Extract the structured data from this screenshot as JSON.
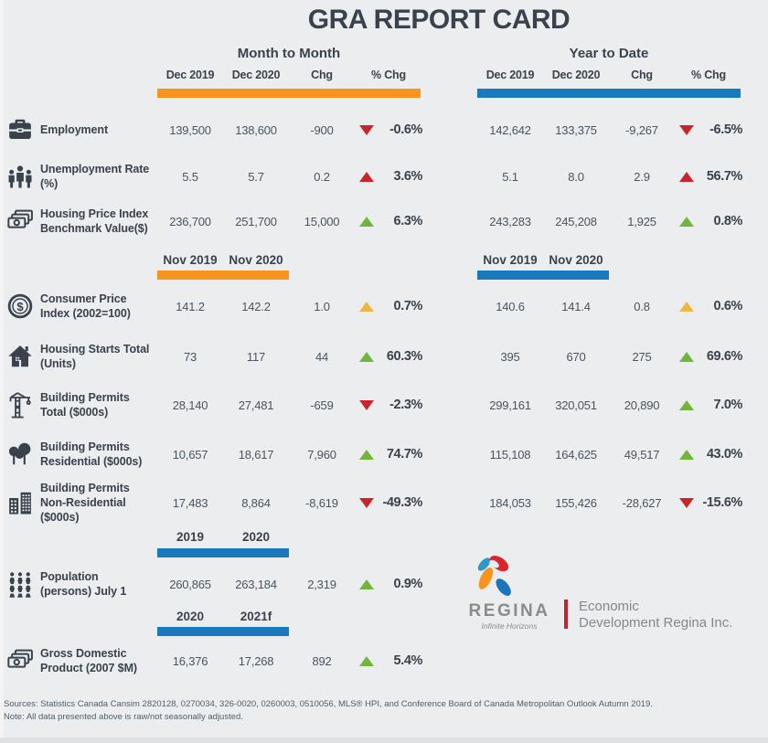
{
  "title": "GRA REPORT CARD",
  "groups": {
    "mtm": {
      "title": "Month to Month",
      "columns": [
        "Dec 2019",
        "Dec 2020",
        "Chg",
        "% Chg"
      ],
      "bar_color": "#F7941D"
    },
    "ytd": {
      "title": "Year to Date",
      "columns": [
        "Dec 2019",
        "Dec 2020",
        "Chg",
        "% Chg"
      ],
      "bar_color": "#1879BD"
    }
  },
  "colors": {
    "orange": "#F7941D",
    "blue": "#1879BD",
    "red": "#C9252C",
    "green": "#71B53A",
    "amber": "#EFB644",
    "dark": "#39424D"
  },
  "rows": [
    {
      "type": "data",
      "icon": "briefcase-icon",
      "label": "Employment",
      "mtm": {
        "v2019": "139,500",
        "v2020": "138,600",
        "chg": "-900",
        "trend": "down-red",
        "pct": "-0.6%"
      },
      "ytd": {
        "v2019": "142,642",
        "v2020": "133,375",
        "chg": "-9,267",
        "trend": "down-red",
        "pct": "-6.5%"
      }
    },
    {
      "type": "data",
      "icon": "people-icon",
      "label": "Unemployment Rate (%)",
      "mtm": {
        "v2019": "5.5",
        "v2020": "5.7",
        "chg": "0.2",
        "trend": "up-red",
        "pct": "3.6%"
      },
      "ytd": {
        "v2019": "5.1",
        "v2020": "8.0",
        "chg": "2.9",
        "trend": "up-red",
        "pct": "56.7%"
      }
    },
    {
      "type": "data",
      "icon": "banknotes-icon",
      "label": "Housing Price Index Benchmark Value($)",
      "mtm": {
        "v2019": "236,700",
        "v2020": "251,700",
        "chg": "15,000",
        "trend": "up-green",
        "pct": "6.3%"
      },
      "ytd": {
        "v2019": "243,283",
        "v2020": "245,208",
        "chg": "1,925",
        "trend": "up-green",
        "pct": "0.8%"
      }
    },
    {
      "type": "subheader",
      "left": {
        "labels": [
          "Nov 2019",
          "Nov 2020"
        ],
        "bar_color_key": "orange"
      },
      "right": {
        "labels": [
          "Nov 2019",
          "Nov 2020"
        ],
        "bar_color_key": "blue"
      }
    },
    {
      "type": "data",
      "icon": "dollar-coin-icon",
      "label": "Consumer Price Index (2002=100)",
      "mtm": {
        "v2019": "141.2",
        "v2020": "142.2",
        "chg": "1.0",
        "trend": "up-amber",
        "pct": "0.7%"
      },
      "ytd": {
        "v2019": "140.6",
        "v2020": "141.4",
        "chg": "0.8",
        "trend": "up-amber",
        "pct": "0.6%"
      }
    },
    {
      "type": "data",
      "icon": "house-icon",
      "label": "Housing Starts Total (Units)",
      "mtm": {
        "v2019": "73",
        "v2020": "117",
        "chg": "44",
        "trend": "up-green",
        "pct": "60.3%"
      },
      "ytd": {
        "v2019": "395",
        "v2020": "670",
        "chg": "275",
        "trend": "up-green",
        "pct": "69.6%"
      }
    },
    {
      "type": "data",
      "icon": "crane-icon",
      "label": "Building Permits Total ($000s)",
      "mtm": {
        "v2019": "28,140",
        "v2020": "27,481",
        "chg": "-659",
        "trend": "down-red",
        "pct": "-2.3%"
      },
      "ytd": {
        "v2019": "299,161",
        "v2020": "320,051",
        "chg": "20,890",
        "trend": "up-green",
        "pct": "7.0%"
      }
    },
    {
      "type": "data",
      "icon": "trees-icon",
      "label": "Building Permits Residential ($000s)",
      "mtm": {
        "v2019": "10,657",
        "v2020": "18,617",
        "chg": "7,960",
        "trend": "up-green",
        "pct": "74.7%"
      },
      "ytd": {
        "v2019": "115,108",
        "v2020": "164,625",
        "chg": "49,517",
        "trend": "up-green",
        "pct": "43.0%"
      }
    },
    {
      "type": "data",
      "icon": "buildings-icon",
      "label": "Building Permits Non-Residential ($000s)",
      "mtm": {
        "v2019": "17,483",
        "v2020": "8,864",
        "chg": "-8,619",
        "trend": "down-red",
        "pct": "-49.3%"
      },
      "ytd": {
        "v2019": "184,053",
        "v2020": "155,426",
        "chg": "-28,627",
        "trend": "down-red",
        "pct": "-15.6%"
      }
    },
    {
      "type": "subheader",
      "left": {
        "labels": [
          "2019",
          "2020"
        ],
        "bar_color_key": "blue"
      },
      "right": null
    },
    {
      "type": "data",
      "icon": "population-icon",
      "label": "Population (persons) July 1",
      "mtm": {
        "v2019": "260,865",
        "v2020": "263,184",
        "chg": "2,319",
        "trend": "up-green",
        "pct": "0.9%"
      },
      "ytd": null
    },
    {
      "type": "subheader",
      "left": {
        "labels": [
          "2020",
          "2021f"
        ],
        "bar_color_key": "blue"
      },
      "right": null
    },
    {
      "type": "data",
      "icon": "banknotes-icon",
      "label": "Gross Domestic Product (2007 $M)",
      "mtm": {
        "v2019": "16,376",
        "v2020": "17,268",
        "chg": "892",
        "trend": "up-green",
        "pct": "5.4%"
      },
      "ytd": null
    }
  ],
  "logo": {
    "brand": "REGINA",
    "tagline": "Infinite Horizons",
    "org_line1": "Economic",
    "org_line2": "Development Regina Inc."
  },
  "footer": {
    "sources": "Sources: Statistics Canada Cansim 2820128, 0270034, 326-0020, 0260003, 0510056, MLS® HPI, and Conference Board of Canada Metropolitan Outlook Autumn 2019.",
    "note": "Note: All data presented above is raw/not seasonally adjusted."
  }
}
